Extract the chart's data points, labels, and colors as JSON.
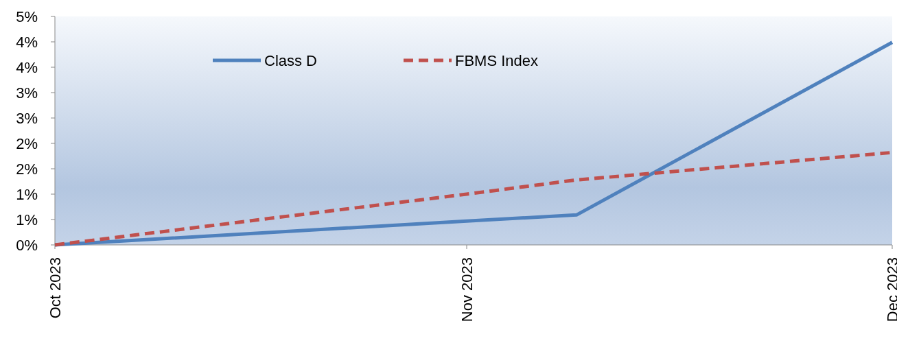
{
  "chart_data": {
    "type": "line",
    "x": [
      "2023-10-31",
      "2023-11-30",
      "2023-12-08",
      "2023-12-31"
    ],
    "series": [
      {
        "name": "Class D",
        "color": "#4f81bd",
        "values": [
          0,
          0.47,
          0.59,
          3.99
        ],
        "line_style": "solid"
      },
      {
        "name": "FBMS Index",
        "color": "#c0504d",
        "values": [
          0,
          1.0,
          1.28,
          1.82
        ],
        "line_style": "dashed"
      }
    ],
    "xlim": [
      "2023-10-31",
      "2023-12-31"
    ],
    "xticks": [
      {
        "value": "2023-10-31",
        "label": "Oct 2023"
      },
      {
        "value": "2023-11-30",
        "label": "Nov 2023"
      },
      {
        "value": "2023-12-31",
        "label": "Dec 2023"
      }
    ],
    "ylim": [
      0,
      4.5
    ],
    "yticks": [
      {
        "value": 0,
        "label": "0%"
      },
      {
        "value": 0.5,
        "label": "1%"
      },
      {
        "value": 1,
        "label": "1%"
      },
      {
        "value": 1.5,
        "label": "2%"
      },
      {
        "value": 2,
        "label": "2%"
      },
      {
        "value": 2.5,
        "label": "3%"
      },
      {
        "value": 3,
        "label": "3%"
      },
      {
        "value": 3.5,
        "label": "4%"
      },
      {
        "value": 4,
        "label": "4%"
      },
      {
        "value": 4.5,
        "label": "5%"
      }
    ],
    "legend": "top",
    "grid": false,
    "marker": "none"
  }
}
